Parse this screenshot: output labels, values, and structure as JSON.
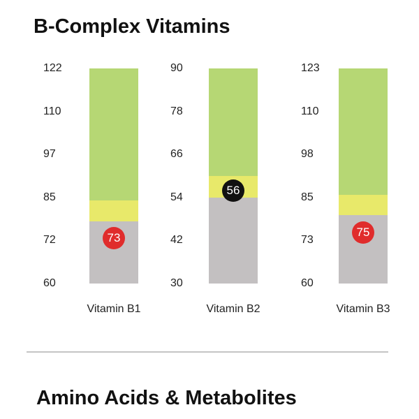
{
  "sections": [
    {
      "title": "B-Complex Vitamins"
    },
    {
      "title": "Amino Acids & Metabolites"
    }
  ],
  "colors": {
    "low": "#c3c0c1",
    "mid": "#e8e96a",
    "high": "#b6d774",
    "marker_out": "#e02c2c",
    "marker_in": "#111111"
  },
  "chart_data": [
    {
      "type": "bar",
      "title": "B-Complex Vitamins",
      "xlabel": "Vitamin B1",
      "yticks": [
        "122",
        "110",
        "97",
        "85",
        "72",
        "60"
      ],
      "ylim": [
        60,
        122
      ],
      "bands": {
        "low": [
          60,
          78
        ],
        "mid": [
          78,
          84
        ],
        "high": [
          84,
          122
        ]
      },
      "value": 73,
      "marker_color": "marker_out"
    },
    {
      "type": "bar",
      "title": "B-Complex Vitamins",
      "xlabel": "Vitamin B2",
      "yticks": [
        "90",
        "78",
        "66",
        "54",
        "42",
        "30"
      ],
      "ylim": [
        30,
        90
      ],
      "bands": {
        "low": [
          30,
          54
        ],
        "mid": [
          54,
          60
        ],
        "high": [
          60,
          90
        ]
      },
      "value": 56,
      "marker_color": "marker_in"
    },
    {
      "type": "bar",
      "title": "B-Complex Vitamins",
      "xlabel": "Vitamin B3",
      "yticks": [
        "123",
        "110",
        "98",
        "85",
        "73",
        "60"
      ],
      "ylim": [
        60,
        123
      ],
      "bands": {
        "low": [
          60,
          80
        ],
        "mid": [
          80,
          86
        ],
        "high": [
          86,
          123
        ]
      },
      "value": 75,
      "marker_color": "marker_out"
    }
  ]
}
